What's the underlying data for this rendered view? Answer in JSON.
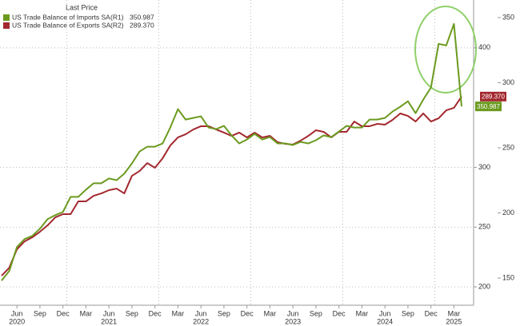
{
  "chart_data": {
    "type": "line",
    "title": "Last Price",
    "categories": [
      null,
      null,
      "Jun",
      null,
      null,
      "Sep",
      null,
      null,
      "Dec",
      null,
      null,
      "Mar",
      null,
      null,
      "Jun",
      null,
      null,
      "Sep",
      null,
      null,
      "Dec",
      null,
      null,
      "Mar",
      null,
      null,
      "Jun",
      null,
      null,
      "Sep",
      null,
      null,
      "Dec",
      null,
      null,
      "Mar",
      null,
      null,
      "Jun",
      null,
      null,
      "Sep",
      null,
      null,
      "Dec",
      null,
      null,
      "Mar",
      null,
      null,
      "Jun",
      null,
      null,
      "Sep",
      null,
      null,
      "Dec",
      null,
      null,
      "Mar",
      null
    ],
    "years": [
      null,
      null,
      "2020",
      null,
      null,
      null,
      null,
      null,
      null,
      null,
      null,
      null,
      null,
      null,
      "2021",
      null,
      null,
      null,
      null,
      null,
      null,
      null,
      null,
      null,
      null,
      null,
      "2022",
      null,
      null,
      null,
      null,
      null,
      null,
      null,
      null,
      null,
      null,
      null,
      "2023",
      null,
      null,
      null,
      null,
      null,
      null,
      null,
      null,
      null,
      null,
      null,
      "2024",
      null,
      null,
      null,
      null,
      null,
      null,
      null,
      null,
      "2025",
      null
    ],
    "series": [
      {
        "name": "US Trade Balance of Imports SA",
        "axis_tag": "(R1)",
        "last_label": "350.987",
        "color": "#6b9a1f",
        "axis": "y",
        "values": [
          205.3,
          213.3,
          233.3,
          240,
          242.7,
          248.7,
          256.7,
          260,
          262.7,
          275.3,
          275.3,
          281.3,
          286.7,
          286.7,
          290.7,
          289.3,
          294.7,
          303.3,
          313.3,
          317.3,
          317.3,
          320,
          333.3,
          348.7,
          340,
          341.3,
          342.7,
          333.3,
          332,
          334.7,
          326.7,
          320,
          323.3,
          328,
          323.3,
          325.3,
          320,
          320,
          318.7,
          321.3,
          320,
          322.7,
          326.7,
          325.3,
          330,
          334.7,
          333.3,
          333.3,
          340,
          340,
          341.3,
          346.7,
          350.7,
          355.3,
          345.3,
          356.7,
          366.7,
          403.3,
          402,
          420,
          350.987
        ]
      },
      {
        "name": "US Trade Balance of Exports SA",
        "axis_tag": "(R2)",
        "last_label": "289.370",
        "color": "#a3282f",
        "axis": "y2",
        "values": [
          151.8,
          158,
          172.1,
          178.2,
          181.3,
          185.6,
          190.5,
          196.6,
          199.1,
          199.1,
          208.9,
          208.9,
          213.2,
          215,
          217.5,
          218.7,
          215,
          228.5,
          232.2,
          238.3,
          234.7,
          242,
          251.8,
          258,
          260.4,
          264.1,
          266.6,
          266.6,
          264.1,
          261.7,
          259.2,
          261.7,
          258,
          261.7,
          258,
          259.2,
          254.3,
          253.1,
          252.5,
          255.5,
          259.2,
          263.5,
          262.3,
          258,
          262.3,
          262.3,
          270.2,
          266.6,
          266.6,
          268.4,
          267.8,
          271.5,
          276.4,
          274.5,
          270.2,
          276.4,
          270.2,
          272.7,
          278.8,
          280.7,
          289.37
        ]
      }
    ],
    "ylim": [
      186,
      440
    ],
    "yticks": [
      200,
      250,
      300,
      400
    ],
    "y2lim": [
      130.4,
      363.5
    ],
    "y2ticks": [
      150,
      200,
      250,
      300,
      350
    ],
    "grid": true
  }
}
